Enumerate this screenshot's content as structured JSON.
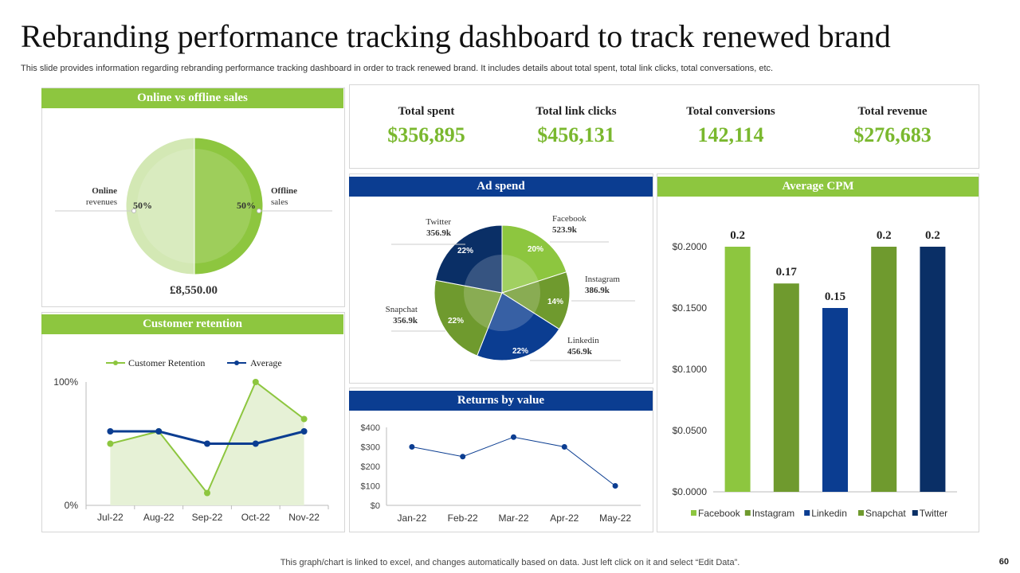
{
  "title": "Rebranding performance tracking dashboard to track renewed brand",
  "subtitle": "This slide provides information regarding rebranding performance tracking dashboard in order to track renewed brand. It includes details about total spent, total link clicks, total conversations, etc.",
  "kpis": [
    {
      "label": "Total spent",
      "value": "$356,895"
    },
    {
      "label": "Total link clicks",
      "value": "$456,131"
    },
    {
      "label": "Total conversions",
      "value": "142,114"
    },
    {
      "label": "Total revenue",
      "value": "$276,683"
    }
  ],
  "panels": {
    "online_offline": "Online vs offline sales",
    "retention": "Customer retention",
    "ad_spend": "Ad spend",
    "returns": "Returns by value",
    "cpm": "Average CPM"
  },
  "online_offline_total": "£8,550.00",
  "footer": "This graph/chart is linked to excel, and changes automatically based on data. Just left click on it and select “Edit Data”.",
  "page_number": "60",
  "colors": {
    "green": "#8dc63f",
    "dark_green": "#6f9a2e",
    "blue": "#0b3d91",
    "navy": "#0a2f66",
    "light_green": "#d3e8b4"
  },
  "chart_data": [
    {
      "id": "online_offline",
      "type": "pie",
      "title": "Online vs offline sales",
      "slices": [
        {
          "label": "Online revenues",
          "value": 50,
          "pct_label": "50%",
          "color": "#d3e8b4"
        },
        {
          "label": "Offline sales",
          "value": 50,
          "pct_label": "50%",
          "color": "#8dc63f"
        }
      ]
    },
    {
      "id": "ad_spend",
      "type": "pie",
      "title": "Ad spend",
      "slices": [
        {
          "label": "Facebook",
          "amount": "523.9k",
          "value": 20,
          "pct_label": "20%",
          "color": "#8dc63f"
        },
        {
          "label": "Instagram",
          "amount": "386.9k",
          "value": 14,
          "pct_label": "14%",
          "color": "#6f9a2e"
        },
        {
          "label": "Linkedin",
          "amount": "456.9k",
          "value": 22,
          "pct_label": "22%",
          "color": "#0b3d91"
        },
        {
          "label": "Snapchat",
          "amount": "356.9k",
          "value": 22,
          "pct_label": "22%",
          "color": "#6f9a2e"
        },
        {
          "label": "Twitter",
          "amount": "356.9k",
          "value": 22,
          "pct_label": "22%",
          "color": "#0a2f66"
        }
      ]
    },
    {
      "id": "retention",
      "type": "line",
      "title": "Customer retention",
      "categories": [
        "Jul-22",
        "Aug-22",
        "Sep-22",
        "Oct-22",
        "Nov-22"
      ],
      "series": [
        {
          "name": "Customer Retention",
          "values": [
            50,
            60,
            10,
            100,
            70
          ],
          "color": "#8dc63f",
          "area": true
        },
        {
          "name": "Average",
          "values": [
            60,
            60,
            50,
            50,
            60
          ],
          "color": "#0b3d91"
        }
      ],
      "ylim": [
        0,
        100
      ],
      "yticks": [
        "0%",
        "100%"
      ]
    },
    {
      "id": "returns",
      "type": "line",
      "title": "Returns by value",
      "categories": [
        "Jan-22",
        "Feb-22",
        "Mar-22",
        "Apr-22",
        "May-22"
      ],
      "values": [
        300,
        250,
        350,
        300,
        100
      ],
      "ylim": [
        0,
        400
      ],
      "yticks": [
        "$0",
        "$100",
        "$200",
        "$300",
        "$400"
      ],
      "color": "#0b3d91"
    },
    {
      "id": "cpm",
      "type": "bar",
      "title": "Average CPM",
      "categories": [
        "Facebook",
        "Instagram",
        "Linkedin",
        "Snapchat",
        "Twitter"
      ],
      "values": [
        0.2,
        0.17,
        0.15,
        0.2,
        0.2
      ],
      "labels": [
        "0.2",
        "0.17",
        "0.15",
        "0.2",
        "0.2"
      ],
      "colors": [
        "#8dc63f",
        "#6f9a2e",
        "#0b3d91",
        "#6f9a2e",
        "#0a2f66"
      ],
      "ylim": [
        0,
        0.2
      ],
      "yticks": [
        "$0.0000",
        "$0.0500",
        "$0.1000",
        "$0.1500",
        "$0.2000"
      ]
    }
  ]
}
